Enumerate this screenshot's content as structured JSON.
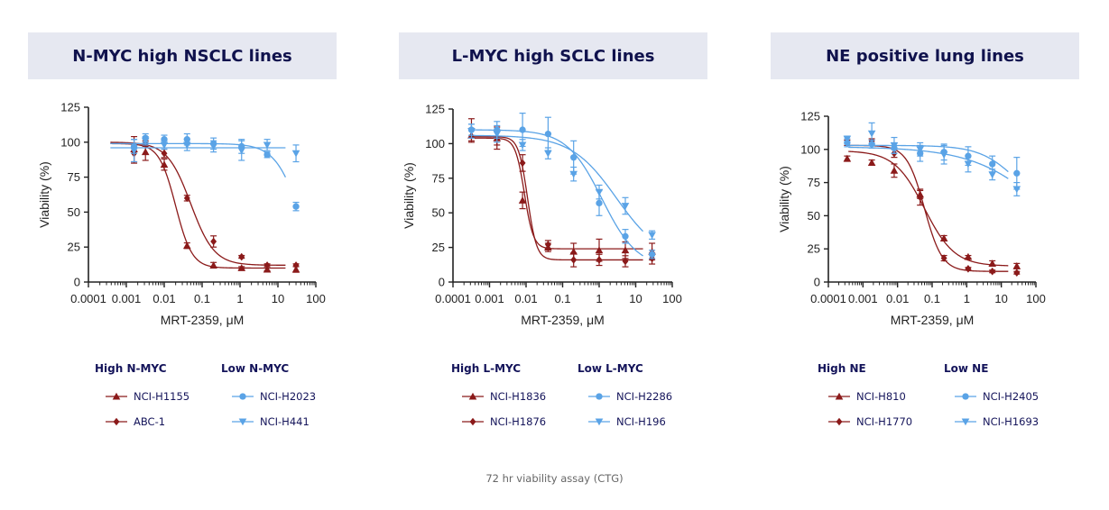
{
  "footnote": "72 hr viability assay (CTG)",
  "colors": {
    "high": "#8b1a1a",
    "low": "#5aa3e6",
    "title_bg": "#e6e8f1",
    "title_text": "#10124d"
  },
  "chart_data": [
    {
      "type": "line",
      "title": "N-MYC high NSCLC lines",
      "xlabel": "MRT-2359, μM",
      "ylabel": "Viability (%)",
      "xscale": "log",
      "xlim": [
        0.0001,
        100
      ],
      "ylim": [
        0,
        125
      ],
      "xticks": [
        0.0001,
        0.001,
        0.01,
        0.1,
        1,
        10,
        100
      ],
      "xtick_labels": [
        "0.0001",
        "0.001",
        "0.01",
        "0.1",
        "1",
        "10",
        "100"
      ],
      "yticks": [
        0,
        25,
        50,
        75,
        100,
        125
      ],
      "legend": {
        "high_header": "High  N-MYC",
        "low_header": "Low  N-MYC"
      },
      "x": [
        0.0032,
        0.0016,
        0.01,
        0.04,
        0.2,
        1.1,
        5.2,
        30
      ],
      "series": [
        {
          "name": "NCI-H1155",
          "group": "high",
          "marker": "triangle-up",
          "values": [
            93,
            95,
            84,
            26,
            12,
            10,
            9,
            9
          ],
          "errors": [
            6,
            9,
            4,
            2,
            2,
            1,
            1,
            2
          ],
          "fit": {
            "top": 99,
            "bottom": 10,
            "ec50": 0.02,
            "hill": 2.0
          }
        },
        {
          "name": "ABC-1",
          "group": "high",
          "marker": "diamond",
          "values": [
            99,
            92,
            92,
            60,
            29,
            18,
            12,
            12
          ],
          "errors": [
            2,
            7,
            3,
            2,
            4,
            1,
            1,
            1
          ],
          "fit": {
            "top": 100,
            "bottom": 12,
            "ec50": 0.05,
            "hill": 1.4
          }
        },
        {
          "name": "NCI-H2023",
          "group": "low",
          "marker": "circle",
          "values": [
            103,
            97,
            102,
            102,
            99,
            97,
            91,
            54
          ],
          "errors": [
            3,
            5,
            3,
            4,
            4,
            5,
            2,
            3
          ],
          "fit": {
            "top": 99,
            "bottom": 0,
            "ec50": 38,
            "hill": 1.3
          }
        },
        {
          "name": "NCI-H441",
          "group": "low",
          "marker": "triangle-down",
          "values": [
            101,
            94,
            98,
            98,
            97,
            94,
            98,
            92
          ],
          "errors": [
            3,
            8,
            3,
            4,
            4,
            7,
            4,
            6
          ],
          "fit": {
            "top": 96,
            "bottom": 96,
            "ec50": 1,
            "hill": 1
          }
        }
      ]
    },
    {
      "type": "line",
      "title": "L-MYC high SCLC lines",
      "xlabel": "MRT-2359, μM",
      "ylabel": "Viability (%)",
      "xscale": "log",
      "xlim": [
        0.0001,
        100
      ],
      "ylim": [
        0,
        125
      ],
      "xticks": [
        0.0001,
        0.001,
        0.01,
        0.1,
        1,
        10,
        100
      ],
      "xtick_labels": [
        "0.0001",
        "0.001",
        "0.01",
        "0.1",
        "1",
        "10",
        "100"
      ],
      "yticks": [
        0,
        25,
        50,
        75,
        100,
        125
      ],
      "legend": {
        "high_header": "High  L-MYC",
        "low_header": "Low  L-MYC"
      },
      "x": [
        0.00032,
        0.0016,
        0.008,
        0.04,
        0.2,
        1,
        5.2,
        28
      ],
      "series": [
        {
          "name": "NCI-H1836",
          "group": "high",
          "marker": "triangle-up",
          "values": [
            106,
            104,
            59,
            25,
            22,
            23,
            23,
            22
          ],
          "errors": [
            5,
            5,
            6,
            3,
            6,
            8,
            6,
            6
          ],
          "fit": {
            "top": 104,
            "bottom": 24,
            "ec50": 0.009,
            "hill": 3.5
          }
        },
        {
          "name": "NCI-H1876",
          "group": "high",
          "marker": "diamond",
          "values": [
            110,
            104,
            86,
            27,
            16,
            16,
            15,
            17
          ],
          "errors": [
            8,
            8,
            6,
            3,
            5,
            4,
            4,
            4
          ],
          "fit": {
            "top": 105,
            "bottom": 16,
            "ec50": 0.011,
            "hill": 3.5
          }
        },
        {
          "name": "NCI-H2286",
          "group": "low",
          "marker": "circle",
          "values": [
            110,
            110,
            110,
            107,
            90,
            57,
            33,
            20
          ],
          "errors": [
            4,
            6,
            12,
            12,
            12,
            9,
            5,
            3
          ],
          "fit": {
            "top": 110,
            "bottom": 10,
            "ec50": 1.2,
            "hill": 0.9
          }
        },
        {
          "name": "NCI-H196",
          "group": "low",
          "marker": "triangle-down",
          "values": [
            109,
            107,
            99,
            93,
            78,
            65,
            55,
            34
          ],
          "errors": [
            5,
            6,
            4,
            4,
            5,
            5,
            6,
            3
          ],
          "fit": {
            "top": 106,
            "bottom": 15,
            "ec50": 3,
            "hill": 0.7
          }
        }
      ]
    },
    {
      "type": "line",
      "title": "NE positive lung lines",
      "xlabel": "MRT-2359, μM",
      "ylabel": "Viability (%)",
      "xscale": "log",
      "xlim": [
        0.0001,
        100
      ],
      "ylim": [
        0,
        125
      ],
      "xticks": [
        0.0001,
        0.001,
        0.01,
        0.1,
        1,
        10,
        100
      ],
      "xtick_labels": [
        "0.0001",
        "0.001",
        "0.01",
        "0.1",
        "1",
        "10",
        "100"
      ],
      "yticks": [
        0,
        25,
        50,
        75,
        100,
        125
      ],
      "legend": {
        "high_header": "High  NE",
        "low_header": "Low  NE"
      },
      "x": [
        0.00035,
        0.0018,
        0.008,
        0.045,
        0.22,
        1.1,
        5.5,
        28
      ],
      "series": [
        {
          "name": "NCI-H810",
          "group": "high",
          "marker": "triangle-up",
          "values": [
            93,
            90,
            84,
            66,
            33,
            19,
            14,
            12
          ],
          "errors": [
            2,
            2,
            5,
            3,
            2,
            1,
            2,
            2
          ],
          "fit": {
            "top": 99,
            "bottom": 12,
            "ec50": 0.06,
            "hill": 1.0
          }
        },
        {
          "name": "NCI-H1770",
          "group": "high",
          "marker": "diamond",
          "values": [
            105,
            106,
            97,
            64,
            18,
            10,
            8,
            7
          ],
          "errors": [
            2,
            2,
            3,
            6,
            2,
            1,
            1,
            1
          ],
          "fit": {
            "top": 103,
            "bottom": 8,
            "ec50": 0.06,
            "hill": 1.7
          }
        },
        {
          "name": "NCI-H2405",
          "group": "low",
          "marker": "circle",
          "values": [
            105,
            104,
            101,
            97,
            98,
            95,
            89,
            82
          ],
          "errors": [
            3,
            3,
            4,
            6,
            6,
            7,
            6,
            12
          ],
          "fit": {
            "top": 103,
            "bottom": 50,
            "ec50": 30,
            "hill": 0.8
          }
        },
        {
          "name": "NCI-H1693",
          "group": "low",
          "marker": "triangle-down",
          "values": [
            108,
            112,
            103,
            100,
            96,
            89,
            81,
            70
          ],
          "errors": [
            2,
            8,
            6,
            5,
            7,
            6,
            4,
            5
          ],
          "fit": {
            "top": 102,
            "bottom": 0,
            "ec50": 300,
            "hill": 0.4
          }
        }
      ]
    }
  ]
}
